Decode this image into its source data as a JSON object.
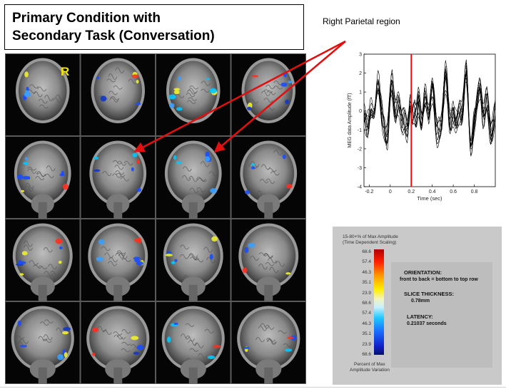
{
  "title": {
    "line1": "Primary Condition with",
    "line2": "Secondary Task (Conversation)"
  },
  "region_label": "Right Parietal region",
  "mri": {
    "r_marker": "R",
    "rows": 4,
    "cols": 4,
    "marker_color": "#f5e600",
    "arrow_color": "#e01010"
  },
  "chart_data": {
    "type": "line",
    "xlabel": "Time (sec)",
    "ylabel": "MEG data Amplitude (fT)",
    "xlim": [
      -0.25,
      1.0
    ],
    "ylim": [
      -4,
      3
    ],
    "xticks": [
      "-0.2",
      "0",
      "0.2",
      "0.4",
      "0.6",
      "0.8"
    ],
    "yticks": [
      "3",
      "2",
      "1",
      "0",
      "-1",
      "-2",
      "-3",
      "-4"
    ],
    "marker_x": 0.2,
    "marker_color": "#ff0000",
    "series_count": 10,
    "series_color": "#000000"
  },
  "legend": {
    "title1": "15-80+% of Max Amplitude",
    "title2": "(Time Dependent Scaling)",
    "scale_top": [
      "68.6",
      "57.4",
      "46.3",
      "35.1",
      "23.9"
    ],
    "scale_bottom": [
      "68.6",
      "57.4",
      "46.3",
      "35.1",
      "23.9",
      "68.6"
    ],
    "footer1": "Percent of Max",
    "footer2": "Amplitude Variation",
    "orientation_head": "ORIENTATION:",
    "orientation_val": "front to back = bottom to top row",
    "thickness_head": "SLICE THICKNESS:",
    "thickness_val": "0.78mm",
    "latency_head": "LATENCY:",
    "latency_val": "0.21037 seconds"
  }
}
